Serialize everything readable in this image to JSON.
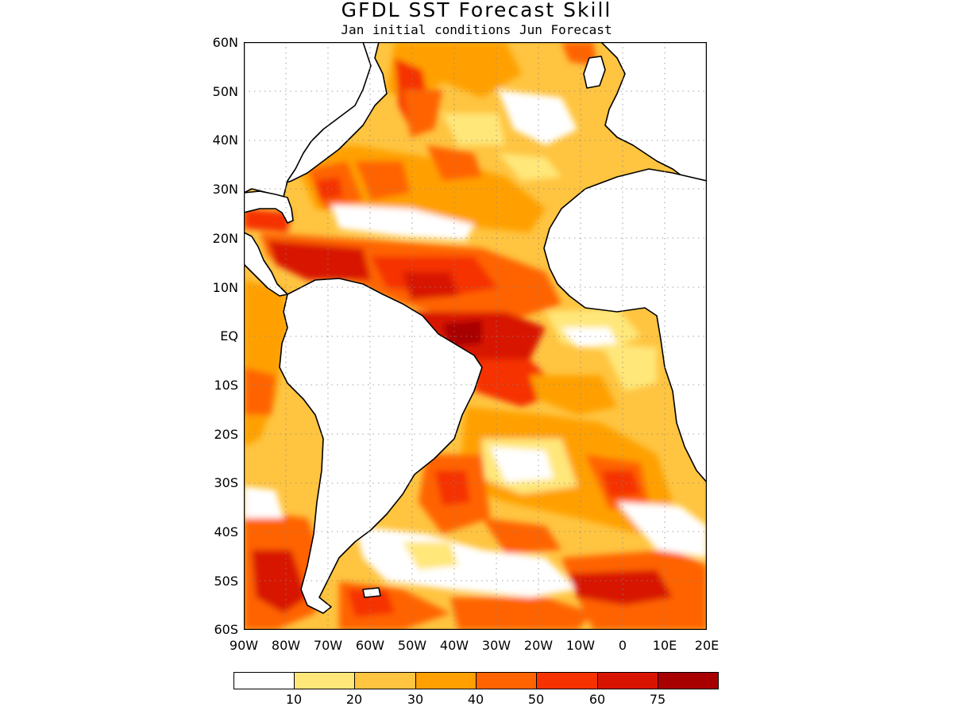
{
  "title": "GFDL SST Forecast Skill",
  "subtitle": "Jan initial conditions  Jun Forecast",
  "map": {
    "region": "Atlantic Ocean",
    "lon_range": [
      -90,
      20
    ],
    "lat_range": [
      -60,
      60
    ],
    "lat_ticks": [
      "60N",
      "50N",
      "40N",
      "30N",
      "20N",
      "10N",
      "EQ",
      "10S",
      "20S",
      "30S",
      "40S",
      "50S",
      "60S"
    ],
    "lon_ticks": [
      "90W",
      "80W",
      "70W",
      "60W",
      "50W",
      "40W",
      "30W",
      "20W",
      "10W",
      "0",
      "10E",
      "20E"
    ],
    "gridlines": "dotted",
    "land_color": "#ffffff"
  },
  "colorbar": {
    "colors": [
      "#ffffff",
      "#ffe77a",
      "#ffc440",
      "#ffa000",
      "#ff6400",
      "#f53200",
      "#d81400",
      "#a80000"
    ],
    "labels": [
      "10",
      "20",
      "30",
      "40",
      "50",
      "60",
      "75"
    ]
  }
}
